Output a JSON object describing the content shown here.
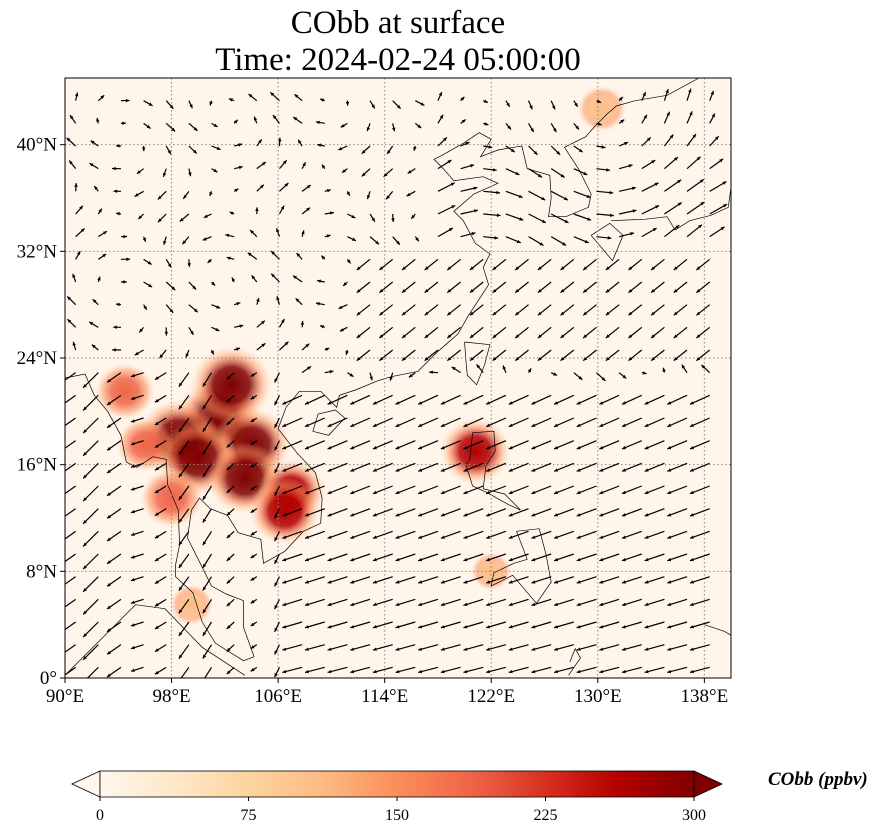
{
  "title": {
    "line1": "CObb at surface",
    "line2": "Time: 2024-02-24 05:00:00"
  },
  "map": {
    "extent": {
      "lon_min": 90,
      "lon_max": 140,
      "lat_min": 0,
      "lat_max": 45
    },
    "lon_ticks": [
      {
        "value": 90,
        "label": "90°E"
      },
      {
        "value": 98,
        "label": "98°E"
      },
      {
        "value": 106,
        "label": "106°E"
      },
      {
        "value": 114,
        "label": "114°E"
      },
      {
        "value": 122,
        "label": "122°E"
      },
      {
        "value": 130,
        "label": "130°E"
      },
      {
        "value": 138,
        "label": "138°E"
      }
    ],
    "lat_ticks": [
      {
        "value": 0,
        "label": "0°"
      },
      {
        "value": 8,
        "label": "8°N"
      },
      {
        "value": 16,
        "label": "16°N"
      },
      {
        "value": 24,
        "label": "24°N"
      },
      {
        "value": 32,
        "label": "32°N"
      },
      {
        "value": 40,
        "label": "40°N"
      }
    ],
    "gridlines": "dotted",
    "field_colormap": "OrRd",
    "wind_vectors": "black quiver arrows",
    "hotspots": [
      {
        "lon": 101.5,
        "lat": 19.5,
        "intensity": 1.0
      },
      {
        "lon": 98.5,
        "lat": 18.0,
        "intensity": 0.95
      },
      {
        "lon": 102.5,
        "lat": 22.0,
        "intensity": 0.95
      },
      {
        "lon": 104.0,
        "lat": 17.5,
        "intensity": 0.9
      },
      {
        "lon": 100.0,
        "lat": 16.5,
        "intensity": 0.9
      },
      {
        "lon": 103.5,
        "lat": 15.0,
        "intensity": 0.85
      },
      {
        "lon": 107.0,
        "lat": 14.0,
        "intensity": 0.7
      },
      {
        "lon": 106.5,
        "lat": 12.5,
        "intensity": 0.75
      },
      {
        "lon": 98.0,
        "lat": 13.5,
        "intensity": 0.6
      },
      {
        "lon": 94.5,
        "lat": 21.5,
        "intensity": 0.55
      },
      {
        "lon": 96.0,
        "lat": 17.5,
        "intensity": 0.5
      },
      {
        "lon": 120.8,
        "lat": 17.0,
        "intensity": 0.75
      },
      {
        "lon": 130.3,
        "lat": 42.7,
        "intensity": 0.35
      },
      {
        "lon": 99.5,
        "lat": 5.5,
        "intensity": 0.25
      },
      {
        "lon": 122.0,
        "lat": 8.0,
        "intensity": 0.2
      }
    ]
  },
  "colorbar": {
    "label": "CObb (ppbv)",
    "min": 0,
    "max": 300,
    "ticks": [
      {
        "value": 0,
        "label": "0"
      },
      {
        "value": 75,
        "label": "75"
      },
      {
        "value": 150,
        "label": "150"
      },
      {
        "value": 225,
        "label": "225"
      },
      {
        "value": 300,
        "label": "300"
      }
    ],
    "extend": "both",
    "colors": [
      "#fff7ec",
      "#fee8c8",
      "#fdd49e",
      "#fdbb84",
      "#fc8d59",
      "#ef6548",
      "#d7301f",
      "#b30000",
      "#7f0000"
    ]
  }
}
